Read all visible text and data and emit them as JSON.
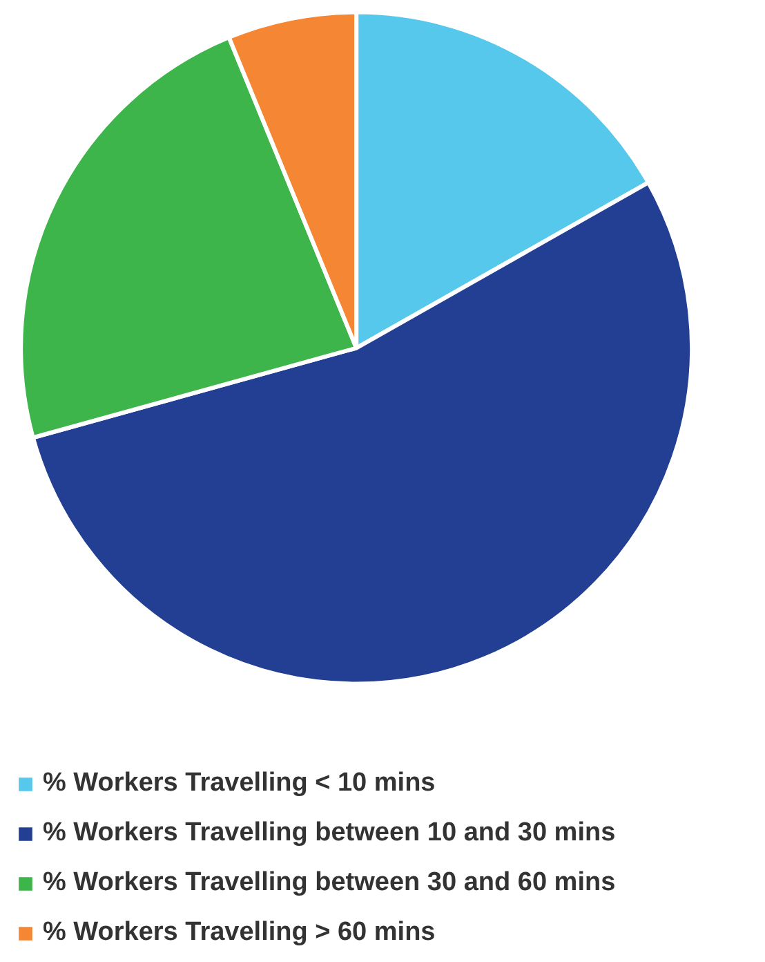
{
  "chart_data": {
    "type": "pie",
    "categories": [
      "% Workers Travelling < 10 mins",
      "% Workers Travelling between 10 and 30 mins",
      "% Workers Travelling between 30 and 60 mins",
      "% Workers Travelling > 60 mins"
    ],
    "values": [
      16.8,
      53.9,
      23.1,
      6.2
    ],
    "colors": [
      "#56c8ec",
      "#233f93",
      "#3eb54a",
      "#f58634"
    ],
    "legend": "bottom"
  }
}
